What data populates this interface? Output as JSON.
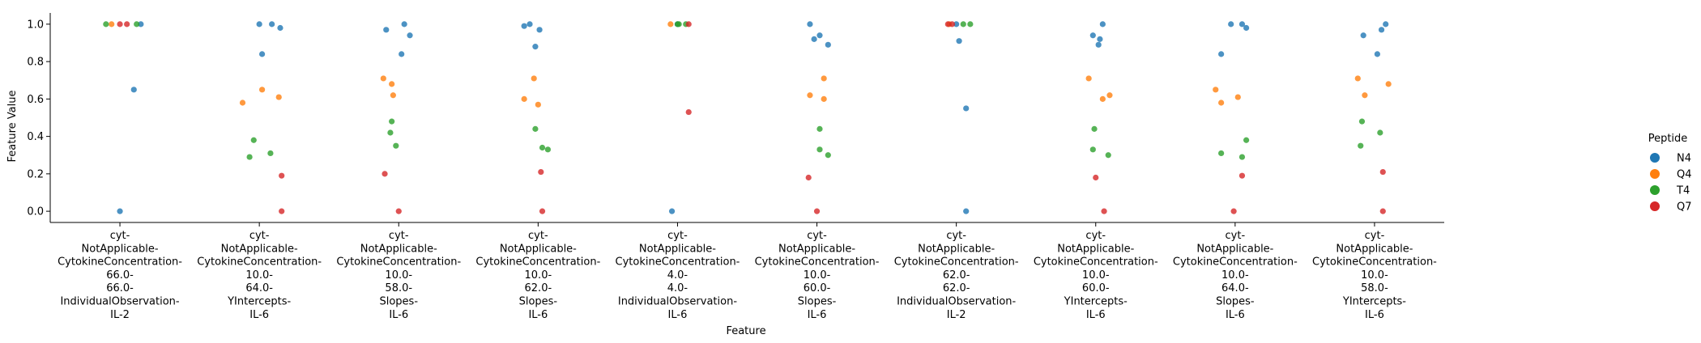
{
  "chart_data": {
    "type": "scatter",
    "title": "",
    "xlabel": "Feature",
    "ylabel": "Feature Value",
    "ylim": [
      -0.06,
      1.06
    ],
    "yticks": [
      0.0,
      0.2,
      0.4,
      0.6,
      0.8,
      1.0
    ],
    "grid": false,
    "legend_position": "right",
    "legend_title": "Peptide",
    "categories": [
      "cyt-\nNotApplicable-\nCytokineConcentration-\n66.0-\n66.0-\nIndividualObservation-\nIL-2",
      "cyt-\nNotApplicable-\nCytokineConcentration-\n10.0-\n64.0-\nYIntercepts-\nIL-6",
      "cyt-\nNotApplicable-\nCytokineConcentration-\n10.0-\n58.0-\nSlopes-\nIL-6",
      "cyt-\nNotApplicable-\nCytokineConcentration-\n10.0-\n62.0-\nSlopes-\nIL-6",
      "cyt-\nNotApplicable-\nCytokineConcentration-\n4.0-\n4.0-\nIndividualObservation-\nIL-6",
      "cyt-\nNotApplicable-\nCytokineConcentration-\n10.0-\n60.0-\nSlopes-\nIL-6",
      "cyt-\nNotApplicable-\nCytokineConcentration-\n62.0-\n62.0-\nIndividualObservation-\nIL-2",
      "cyt-\nNotApplicable-\nCytokineConcentration-\n10.0-\n60.0-\nYIntercepts-\nIL-6",
      "cyt-\nNotApplicable-\nCytokineConcentration-\n10.0-\n64.0-\nSlopes-\nIL-6",
      "cyt-\nNotApplicable-\nCytokineConcentration-\n10.0-\n58.0-\nYIntercepts-\nIL-6"
    ],
    "series": [
      {
        "name": "N4",
        "color": "#1f77b4",
        "points": [
          {
            "cat": 0,
            "jitter": 0.15,
            "y": 1.0
          },
          {
            "cat": 0,
            "jitter": 0.1,
            "y": 0.65
          },
          {
            "cat": 0,
            "jitter": 0.0,
            "y": 0.0
          },
          {
            "cat": 1,
            "jitter": 0.0,
            "y": 1.0
          },
          {
            "cat": 1,
            "jitter": 0.09,
            "y": 1.0
          },
          {
            "cat": 1,
            "jitter": 0.15,
            "y": 0.98
          },
          {
            "cat": 1,
            "jitter": 0.02,
            "y": 0.84
          },
          {
            "cat": 2,
            "jitter": -0.09,
            "y": 0.97
          },
          {
            "cat": 2,
            "jitter": 0.04,
            "y": 1.0
          },
          {
            "cat": 2,
            "jitter": 0.08,
            "y": 0.94
          },
          {
            "cat": 2,
            "jitter": 0.02,
            "y": 0.84
          },
          {
            "cat": 3,
            "jitter": -0.1,
            "y": 0.99
          },
          {
            "cat": 3,
            "jitter": -0.06,
            "y": 1.0
          },
          {
            "cat": 3,
            "jitter": 0.01,
            "y": 0.97
          },
          {
            "cat": 3,
            "jitter": -0.02,
            "y": 0.88
          },
          {
            "cat": 4,
            "jitter": 0.0,
            "y": 1.0
          },
          {
            "cat": 4,
            "jitter": -0.04,
            "y": 0.0
          },
          {
            "cat": 5,
            "jitter": -0.05,
            "y": 1.0
          },
          {
            "cat": 5,
            "jitter": -0.02,
            "y": 0.92
          },
          {
            "cat": 5,
            "jitter": 0.02,
            "y": 0.94
          },
          {
            "cat": 5,
            "jitter": 0.08,
            "y": 0.89
          },
          {
            "cat": 6,
            "jitter": 0.0,
            "y": 1.0
          },
          {
            "cat": 6,
            "jitter": 0.02,
            "y": 0.91
          },
          {
            "cat": 6,
            "jitter": 0.07,
            "y": 0.55
          },
          {
            "cat": 6,
            "jitter": 0.07,
            "y": 0.0
          },
          {
            "cat": 7,
            "jitter": -0.02,
            "y": 0.94
          },
          {
            "cat": 7,
            "jitter": 0.05,
            "y": 1.0
          },
          {
            "cat": 7,
            "jitter": 0.03,
            "y": 0.92
          },
          {
            "cat": 7,
            "jitter": 0.02,
            "y": 0.89
          },
          {
            "cat": 8,
            "jitter": -0.03,
            "y": 1.0
          },
          {
            "cat": 8,
            "jitter": 0.05,
            "y": 1.0
          },
          {
            "cat": 8,
            "jitter": 0.08,
            "y": 0.98
          },
          {
            "cat": 8,
            "jitter": -0.1,
            "y": 0.84
          },
          {
            "cat": 9,
            "jitter": -0.08,
            "y": 0.94
          },
          {
            "cat": 9,
            "jitter": 0.05,
            "y": 0.97
          },
          {
            "cat": 9,
            "jitter": 0.08,
            "y": 1.0
          },
          {
            "cat": 9,
            "jitter": 0.02,
            "y": 0.84
          }
        ]
      },
      {
        "name": "Q4",
        "color": "#ff7f0e",
        "points": [
          {
            "cat": 0,
            "jitter": -0.06,
            "y": 1.0
          },
          {
            "cat": 1,
            "jitter": -0.12,
            "y": 0.58
          },
          {
            "cat": 1,
            "jitter": 0.02,
            "y": 0.65
          },
          {
            "cat": 1,
            "jitter": 0.14,
            "y": 0.61
          },
          {
            "cat": 2,
            "jitter": -0.11,
            "y": 0.71
          },
          {
            "cat": 2,
            "jitter": -0.05,
            "y": 0.68
          },
          {
            "cat": 2,
            "jitter": -0.04,
            "y": 0.62
          },
          {
            "cat": 3,
            "jitter": -0.1,
            "y": 0.6
          },
          {
            "cat": 3,
            "jitter": -0.03,
            "y": 0.71
          },
          {
            "cat": 3,
            "jitter": 0.0,
            "y": 0.57
          },
          {
            "cat": 4,
            "jitter": -0.05,
            "y": 1.0
          },
          {
            "cat": 5,
            "jitter": -0.05,
            "y": 0.62
          },
          {
            "cat": 5,
            "jitter": 0.05,
            "y": 0.71
          },
          {
            "cat": 5,
            "jitter": 0.05,
            "y": 0.6
          },
          {
            "cat": 6,
            "jitter": -0.05,
            "y": 1.0
          },
          {
            "cat": 7,
            "jitter": -0.05,
            "y": 0.71
          },
          {
            "cat": 7,
            "jitter": 0.05,
            "y": 0.6
          },
          {
            "cat": 7,
            "jitter": 0.1,
            "y": 0.62
          },
          {
            "cat": 8,
            "jitter": -0.14,
            "y": 0.65
          },
          {
            "cat": 8,
            "jitter": -0.1,
            "y": 0.58
          },
          {
            "cat": 8,
            "jitter": 0.02,
            "y": 0.61
          },
          {
            "cat": 9,
            "jitter": -0.12,
            "y": 0.71
          },
          {
            "cat": 9,
            "jitter": -0.07,
            "y": 0.62
          },
          {
            "cat": 9,
            "jitter": 0.1,
            "y": 0.68
          }
        ]
      },
      {
        "name": "T4",
        "color": "#2ca02c",
        "points": [
          {
            "cat": 0,
            "jitter": -0.1,
            "y": 1.0
          },
          {
            "cat": 0,
            "jitter": 0.12,
            "y": 1.0
          },
          {
            "cat": 1,
            "jitter": -0.04,
            "y": 0.38
          },
          {
            "cat": 1,
            "jitter": -0.07,
            "y": 0.29
          },
          {
            "cat": 1,
            "jitter": 0.08,
            "y": 0.31
          },
          {
            "cat": 2,
            "jitter": -0.05,
            "y": 0.48
          },
          {
            "cat": 2,
            "jitter": -0.06,
            "y": 0.42
          },
          {
            "cat": 2,
            "jitter": -0.02,
            "y": 0.35
          },
          {
            "cat": 3,
            "jitter": -0.02,
            "y": 0.44
          },
          {
            "cat": 3,
            "jitter": 0.03,
            "y": 0.34
          },
          {
            "cat": 3,
            "jitter": 0.07,
            "y": 0.33
          },
          {
            "cat": 4,
            "jitter": 0.0,
            "y": 1.0
          },
          {
            "cat": 4,
            "jitter": 0.01,
            "y": 1.0
          },
          {
            "cat": 4,
            "jitter": 0.06,
            "y": 1.0
          },
          {
            "cat": 5,
            "jitter": 0.02,
            "y": 0.44
          },
          {
            "cat": 5,
            "jitter": 0.02,
            "y": 0.33
          },
          {
            "cat": 5,
            "jitter": 0.08,
            "y": 0.3
          },
          {
            "cat": 6,
            "jitter": 0.05,
            "y": 1.0
          },
          {
            "cat": 6,
            "jitter": 0.1,
            "y": 1.0
          },
          {
            "cat": 7,
            "jitter": -0.01,
            "y": 0.44
          },
          {
            "cat": 7,
            "jitter": -0.02,
            "y": 0.33
          },
          {
            "cat": 7,
            "jitter": 0.09,
            "y": 0.3
          },
          {
            "cat": 8,
            "jitter": -0.1,
            "y": 0.31
          },
          {
            "cat": 8,
            "jitter": 0.05,
            "y": 0.29
          },
          {
            "cat": 8,
            "jitter": 0.08,
            "y": 0.38
          },
          {
            "cat": 9,
            "jitter": -0.09,
            "y": 0.48
          },
          {
            "cat": 9,
            "jitter": -0.1,
            "y": 0.35
          },
          {
            "cat": 9,
            "jitter": 0.04,
            "y": 0.42
          }
        ]
      },
      {
        "name": "Q7",
        "color": "#d62728",
        "points": [
          {
            "cat": 0,
            "jitter": 0.0,
            "y": 1.0
          },
          {
            "cat": 0,
            "jitter": 0.05,
            "y": 1.0
          },
          {
            "cat": 1,
            "jitter": 0.16,
            "y": 0.19
          },
          {
            "cat": 1,
            "jitter": 0.16,
            "y": 0.0
          },
          {
            "cat": 2,
            "jitter": -0.1,
            "y": 0.2
          },
          {
            "cat": 2,
            "jitter": 0.0,
            "y": 0.0
          },
          {
            "cat": 3,
            "jitter": 0.02,
            "y": 0.21
          },
          {
            "cat": 3,
            "jitter": 0.03,
            "y": 0.0
          },
          {
            "cat": 4,
            "jitter": 0.08,
            "y": 1.0
          },
          {
            "cat": 4,
            "jitter": 0.08,
            "y": 0.53
          },
          {
            "cat": 5,
            "jitter": -0.06,
            "y": 0.18
          },
          {
            "cat": 5,
            "jitter": 0.0,
            "y": 0.0
          },
          {
            "cat": 6,
            "jitter": -0.06,
            "y": 1.0
          },
          {
            "cat": 6,
            "jitter": -0.03,
            "y": 1.0
          },
          {
            "cat": 7,
            "jitter": 0.0,
            "y": 0.18
          },
          {
            "cat": 7,
            "jitter": 0.06,
            "y": 0.0
          },
          {
            "cat": 8,
            "jitter": -0.01,
            "y": 0.0
          },
          {
            "cat": 8,
            "jitter": 0.05,
            "y": 0.19
          },
          {
            "cat": 9,
            "jitter": 0.06,
            "y": 0.21
          },
          {
            "cat": 9,
            "jitter": 0.06,
            "y": 0.0
          }
        ]
      }
    ]
  }
}
